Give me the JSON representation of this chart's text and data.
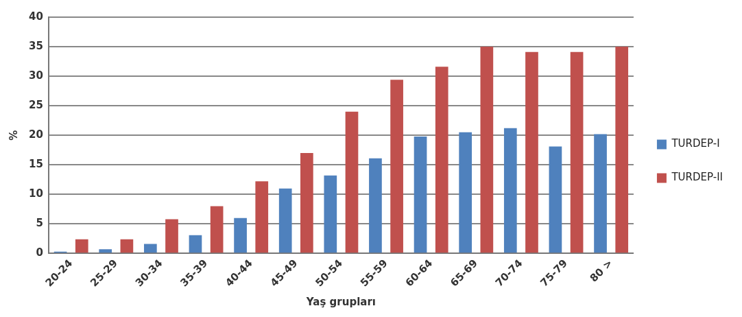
{
  "chart_data": {
    "type": "bar",
    "xlabel": "Yaş grupları",
    "ylabel": "%",
    "categories": [
      "20-24",
      "25-29",
      "30-34",
      "35-39",
      "40-44",
      "45-49",
      "50-54",
      "55-59",
      "60-64",
      "65-69",
      "70-74",
      "75-79",
      "80 >"
    ],
    "series": [
      {
        "name": "TURDEP-I",
        "color": "#4f81bd",
        "values": [
          0.3,
          0.7,
          1.6,
          3.1,
          6.0,
          11.0,
          13.2,
          16.1,
          19.8,
          20.5,
          21.2,
          18.1,
          20.2
        ]
      },
      {
        "name": "TURDEP-II",
        "color": "#c0504d",
        "values": [
          2.4,
          2.4,
          5.8,
          8.0,
          12.2,
          17.0,
          24.0,
          29.4,
          31.6,
          35,
          34.1,
          34.1,
          35
        ]
      }
    ],
    "ylim": [
      0,
      40
    ],
    "yticks": [
      0,
      5,
      10,
      15,
      20,
      25,
      30,
      35,
      40
    ],
    "grid": "y",
    "legend": "right"
  }
}
